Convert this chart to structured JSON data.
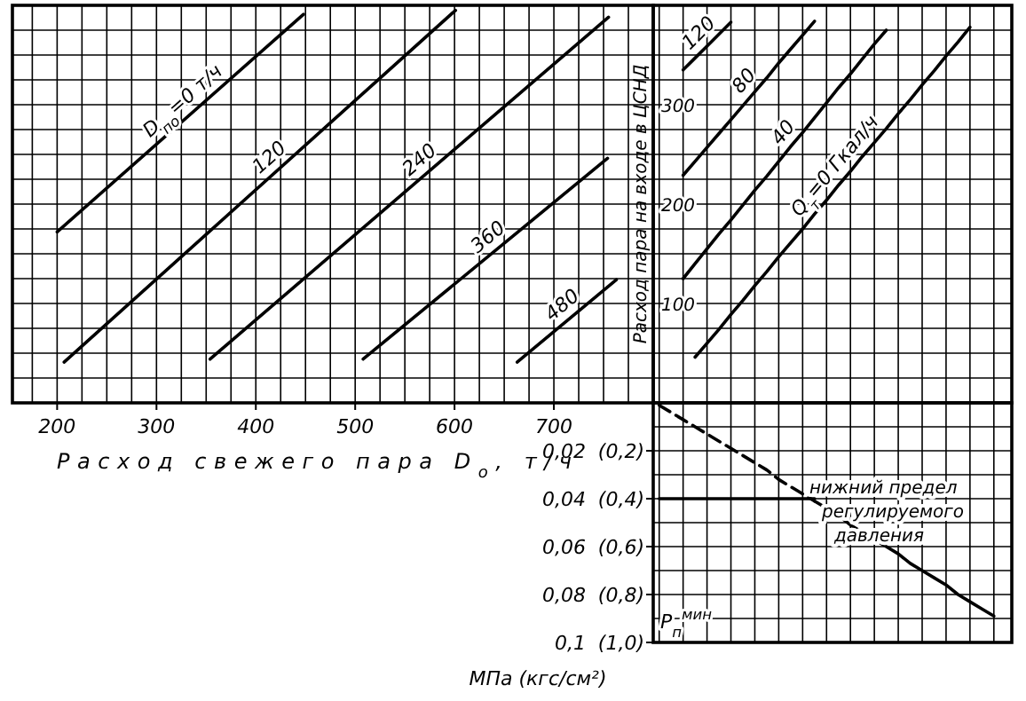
{
  "chart_data": [
    {
      "type": "line",
      "xlabel": "Расход свежего пара D$_{о}$, т/ч",
      "xlim": [
        155,
        800
      ],
      "ylim": [
        0,
        400
      ],
      "grid": true,
      "tick_labels": "x",
      "xticks": [
        {
          "value": 175,
          "label": null
        },
        200,
        {
          "value": 225,
          "label": null
        },
        {
          "value": 250,
          "label": null
        },
        {
          "value": 275,
          "label": null
        },
        300,
        {
          "value": 325,
          "label": null
        },
        {
          "value": 350,
          "label": null
        },
        {
          "value": 375,
          "label": null
        },
        400,
        {
          "value": 425,
          "label": null
        },
        {
          "value": 450,
          "label": null
        },
        {
          "value": 475,
          "label": null
        },
        500,
        {
          "value": 525,
          "label": null
        },
        {
          "value": 550,
          "label": null
        },
        {
          "value": 575,
          "label": null
        },
        600,
        {
          "value": 625,
          "label": null
        },
        {
          "value": 650,
          "label": null
        },
        {
          "value": 675,
          "label": null
        },
        700,
        {
          "value": 725,
          "label": null
        },
        {
          "value": 750,
          "label": null
        },
        {
          "value": 775,
          "label": null
        }
      ],
      "yticks": [
        {
          "value": 25,
          "label": null
        },
        {
          "value": 50,
          "label": null
        },
        {
          "value": 75,
          "label": null
        },
        {
          "value": 100,
          "label": null
        },
        {
          "value": 125,
          "label": null
        },
        {
          "value": 150,
          "label": null
        },
        {
          "value": 175,
          "label": null
        },
        {
          "value": 200,
          "label": null
        },
        {
          "value": 225,
          "label": null
        },
        {
          "value": 250,
          "label": null
        },
        {
          "value": 275,
          "label": null
        },
        {
          "value": 300,
          "label": null
        },
        {
          "value": 325,
          "label": null
        },
        {
          "value": 350,
          "label": null
        },
        {
          "value": 375,
          "label": null
        }
      ],
      "series": [
        {
          "name": "D$_{по}$=0 т/ч",
          "color": "#000000",
          "x": [
            200,
            448
          ],
          "values": [
            172,
            391
          ]
        },
        {
          "name": "120",
          "color": "#000000",
          "x": [
            207,
            601
          ],
          "values": [
            41,
            395
          ]
        },
        {
          "name": "240",
          "color": "#000000",
          "x": [
            354,
            755
          ],
          "values": [
            44,
            388
          ]
        },
        {
          "name": "360",
          "color": "#000000",
          "x": [
            508,
            754
          ],
          "values": [
            44,
            246
          ]
        },
        {
          "name": "480",
          "color": "#000000",
          "x": [
            663,
            763
          ],
          "values": [
            41,
            124
          ]
        }
      ]
    },
    {
      "type": "line",
      "ylabel": "Расход пара на входе в ЦСНД",
      "ylim": [
        0,
        400
      ],
      "grid": true,
      "tick_labels": "y",
      "categories": [
        null,
        null,
        null,
        null,
        null,
        null,
        null,
        null,
        null,
        null,
        null,
        null,
        null,
        null,
        null,
        null,
        null,
        null,
        null,
        null,
        null,
        null,
        null,
        null,
        null,
        null,
        null,
        null,
        null,
        null
      ],
      "yticks": [
        {
          "value": 25,
          "label": null
        },
        {
          "value": 50,
          "label": null
        },
        {
          "value": 75,
          "label": null
        },
        100,
        {
          "value": 125,
          "label": null
        },
        {
          "value": 150,
          "label": null
        },
        {
          "value": 175,
          "label": null
        },
        200,
        {
          "value": 225,
          "label": null
        },
        {
          "value": 250,
          "label": null
        },
        {
          "value": 275,
          "label": null
        },
        300,
        {
          "value": 325,
          "label": null
        },
        {
          "value": 350,
          "label": null
        },
        {
          "value": 375,
          "label": null
        }
      ],
      "series": [
        {
          "name": "120",
          "color": "#000000",
          "values": [
            null,
            null,
            335,
            347,
            359,
            371,
            383,
            null,
            null,
            null,
            null,
            null,
            null,
            null,
            null,
            null,
            null,
            null,
            null,
            null,
            null,
            null,
            null,
            null,
            null,
            null,
            null,
            null,
            null,
            null
          ]
        },
        {
          "name": "80",
          "color": "#000000",
          "values": [
            null,
            null,
            229,
            243,
            257,
            271,
            285,
            299,
            313,
            327,
            342,
            356,
            370,
            384,
            null,
            null,
            null,
            null,
            null,
            null,
            null,
            null,
            null,
            null,
            null,
            null,
            null,
            null,
            null,
            null
          ]
        },
        {
          "name": "40",
          "color": "#000000",
          "values": [
            null,
            null,
            125,
            140,
            155,
            170,
            184,
            199,
            214,
            228,
            243,
            258,
            272,
            287,
            302,
            317,
            331,
            346,
            361,
            375,
            null,
            null,
            null,
            null,
            null,
            null,
            null,
            null,
            null,
            null
          ]
        },
        {
          "name": "Q$_{т}$=0 Гкал/ч",
          "color": "#000000",
          "values": [
            null,
            null,
            null,
            46,
            60,
            74,
            89,
            103,
            118,
            132,
            147,
            161,
            175,
            190,
            204,
            219,
            233,
            248,
            262,
            276,
            291,
            305,
            320,
            334,
            349,
            363,
            378,
            null,
            null,
            null
          ]
        }
      ]
    },
    {
      "type": "line",
      "ylabel": "МПа (кгс/см²)",
      "ylim": [
        0.1,
        0
      ],
      "grid": true,
      "tick_labels": "y",
      "categories": [
        null,
        null,
        null,
        null,
        null,
        null,
        null,
        null,
        null,
        null,
        null,
        null,
        null,
        null,
        null,
        null,
        null,
        null,
        null,
        null,
        null,
        null,
        null,
        null,
        null,
        null,
        null,
        null,
        null,
        null
      ],
      "yticks": [
        {
          "value": 0.01,
          "label": null
        },
        {
          "value": 0.02,
          "label": "0,02"
        },
        {
          "value": 0.03,
          "label": null
        },
        {
          "value": 0.04,
          "label": "0,04"
        },
        {
          "value": 0.05,
          "label": null
        },
        {
          "value": 0.06,
          "label": "0,06"
        },
        {
          "value": 0.07,
          "label": null
        },
        {
          "value": 0.08,
          "label": "0,08"
        },
        {
          "value": 0.09,
          "label": null
        },
        {
          "value": 0.1,
          "label": "0,1"
        }
      ],
      "y2lim": [
        1,
        0
      ],
      "y2ticks": [
        {
          "value": 0.2,
          "label": "(0,2)"
        },
        {
          "value": 0.4,
          "label": "(0,4)"
        },
        {
          "value": 0.6,
          "label": "(0,6)"
        },
        {
          "value": 0.8,
          "label": "(0,8)"
        },
        {
          "value": 1,
          "label": "(1,0)"
        }
      ],
      "annotations": [
        "нижний предел регулируемого давления",
        "P$_{п}$$^{мин}$"
      ],
      "series": [
        {
          "color": "#000000",
          "line_style": "dashed",
          "values": [
            0.001,
            0.004,
            0.007,
            0.01,
            0.013,
            0.016,
            0.019,
            0.022,
            0.025,
            0.028,
            0.032,
            0.035,
            0.038,
            0.041,
            null,
            null,
            null,
            null,
            null,
            null,
            null,
            null,
            null,
            null,
            null,
            null,
            null,
            null,
            null,
            null
          ]
        },
        {
          "color": "#000000",
          "line_style": "solid",
          "values": [
            null,
            null,
            null,
            null,
            null,
            null,
            null,
            null,
            null,
            null,
            null,
            null,
            null,
            0.041,
            0.044,
            0.047,
            0.051,
            0.054,
            0.057,
            0.06,
            0.063,
            0.067,
            0.07,
            0.073,
            0.076,
            0.08,
            0.083,
            0.086,
            0.089,
            null
          ]
        },
        {
          "color": "#000000",
          "line_style": "solid",
          "values": [
            0.04,
            0.04,
            0.04,
            0.04,
            0.04,
            0.04,
            0.04,
            0.04,
            0.04,
            0.04,
            0.04,
            0.04,
            0.04,
            0.04,
            null,
            null,
            null,
            null,
            null,
            null,
            null,
            null,
            null,
            null,
            null,
            null,
            null,
            null,
            null,
            null
          ]
        }
      ]
    }
  ]
}
